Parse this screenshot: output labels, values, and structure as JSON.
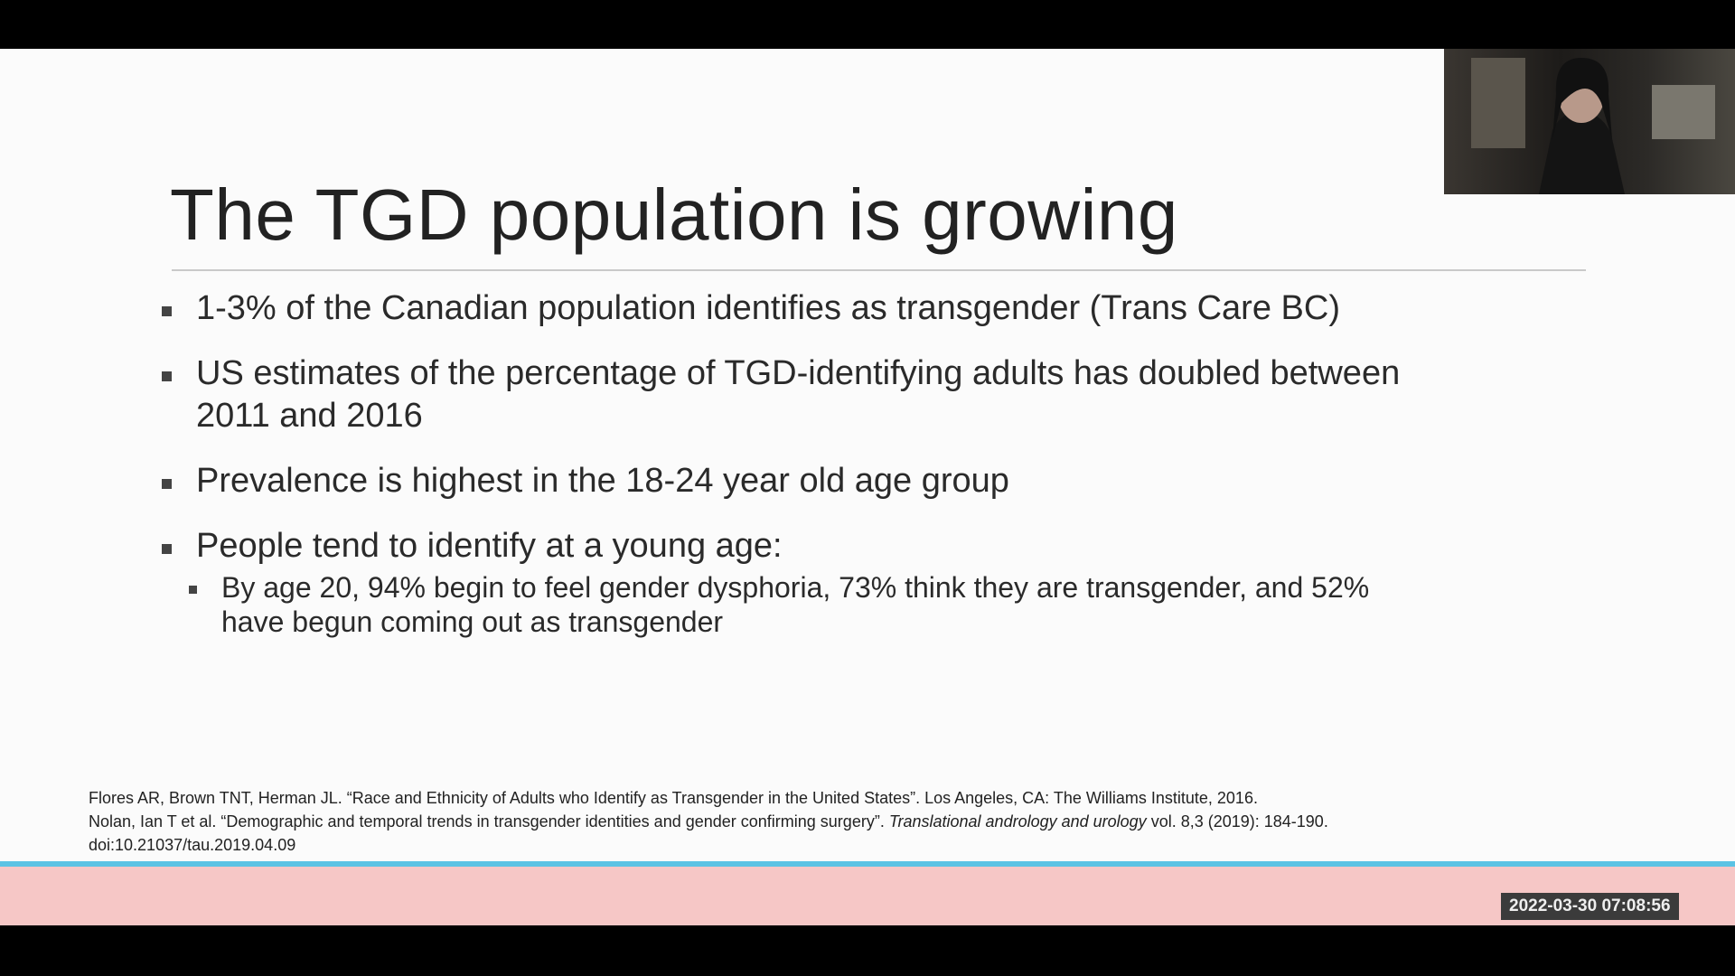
{
  "slide": {
    "title": "The TGD population is growing",
    "bullets": [
      {
        "lines": [
          "1-3% of the Canadian population identifies as transgender (Trans Care BC)"
        ]
      },
      {
        "lines": [
          "US estimates of the percentage of TGD-identifying adults has doubled between",
          "2011 and 2016"
        ]
      },
      {
        "lines": [
          "Prevalence is highest in the 18-24 year old age group"
        ]
      },
      {
        "lines": [
          "People tend to identify at a young age:"
        ],
        "sub": [
          {
            "lines": [
              "By age 20, 94% begin to feel gender dysphoria, 73% think they are transgender, and 52%",
              "have begun coming out as transgender"
            ]
          }
        ]
      }
    ],
    "references": [
      [
        "Flores AR, Brown TNT, Herman JL. “Race and Ethnicity of Adults who Identify as Transgender in the United States”. Los Angeles, CA: The Williams Institute, 2016."
      ],
      [
        "Nolan, Ian T et al. “Demographic and temporal trends in transgender identities and gender confirming surgery”. ",
        "Translational andrology and urology",
        " vol. 8,3 (2019): 184-190."
      ],
      [
        "doi:10.21037/tau.2019.04.09"
      ]
    ]
  },
  "timestamp": "2022-03-30 07:08:56"
}
